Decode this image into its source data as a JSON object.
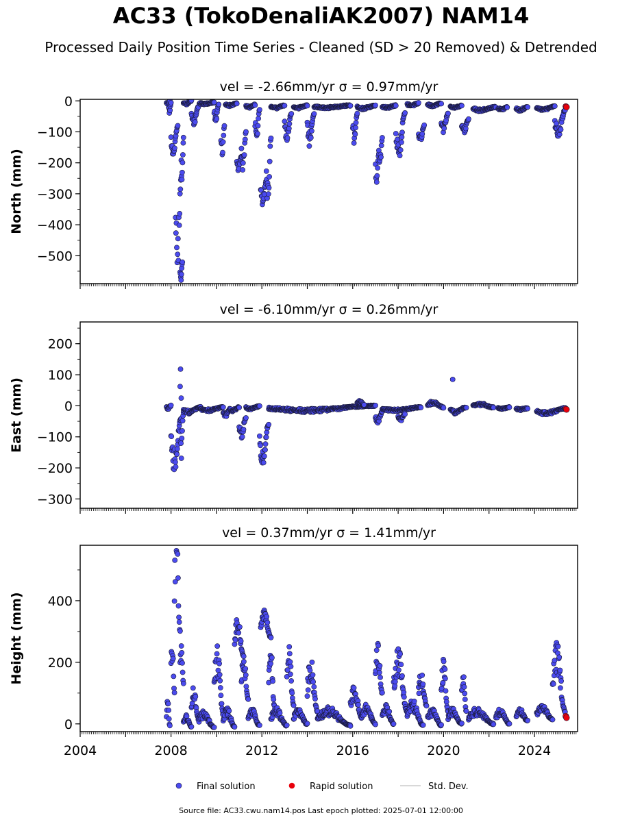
{
  "title": "AC33 (TokoDenaliAK2007) NAM14",
  "subtitle": "Processed Daily Position Time Series - Cleaned (SD > 20 Removed) & Detrended",
  "footer": "Source file: AC33.cwu.nam14.pos  Last epoch plotted: 2025-07-01 12:00:00",
  "colors": {
    "final": "#4b4bef",
    "final_edge": "#1a1a3a",
    "rapid": "#e8000b",
    "stddev": "#cccccc"
  },
  "chart_data": [
    {
      "type": "scatter",
      "title": "vel = -2.66mm/yr   σ = 0.97mm/yr",
      "ylabel": "North (mm)",
      "xlim": [
        2004.0,
        2025.9
      ],
      "ylim": [
        -590,
        5
      ],
      "yticks": [
        0,
        -100,
        -200,
        -300,
        -400,
        -500
      ],
      "ytick_labels": [
        "0",
        "−100",
        "−200",
        "−300",
        "−400",
        "−500"
      ],
      "series": [
        {
          "name": "Final solution",
          "segments": [
            [
              2007.8,
              2007.95,
              0,
              -10
            ],
            [
              2007.9,
              2008.0,
              -5,
              -35
            ],
            [
              2008.0,
              2008.3,
              -80,
              -160
            ],
            [
              2008.2,
              2008.45,
              -250,
              -500
            ],
            [
              2008.4,
              2008.5,
              -520,
              -585
            ],
            [
              2008.45,
              2008.55,
              -120,
              -250
            ],
            [
              2008.55,
              2008.9,
              0,
              -10
            ],
            [
              2008.9,
              2009.2,
              -20,
              -70
            ],
            [
              2009.25,
              2009.9,
              -5,
              -10
            ],
            [
              2009.9,
              2010.1,
              -10,
              -60
            ],
            [
              2010.2,
              2010.35,
              -80,
              -160
            ],
            [
              2010.4,
              2010.9,
              -8,
              -15
            ],
            [
              2010.9,
              2011.1,
              -180,
              -215
            ],
            [
              2011.1,
              2011.3,
              -100,
              -210
            ],
            [
              2011.3,
              2011.7,
              -12,
              -20
            ],
            [
              2011.7,
              2011.9,
              -30,
              -110
            ],
            [
              2011.95,
              2012.2,
              -260,
              -320
            ],
            [
              2012.2,
              2012.4,
              -120,
              -300
            ],
            [
              2012.4,
              2013.0,
              -15,
              -22
            ],
            [
              2013.0,
              2013.3,
              -40,
              -110
            ],
            [
              2013.4,
              2014.0,
              -15,
              -22
            ],
            [
              2014.0,
              2014.3,
              -40,
              -125
            ],
            [
              2014.3,
              2015.9,
              -15,
              -22
            ],
            [
              2016.0,
              2016.2,
              -40,
              -120
            ],
            [
              2016.2,
              2017.0,
              -15,
              -25
            ],
            [
              2017.0,
              2017.15,
              -170,
              -250
            ],
            [
              2017.15,
              2017.3,
              -120,
              -200
            ],
            [
              2017.3,
              2017.9,
              -15,
              -22
            ],
            [
              2017.9,
              2018.3,
              -40,
              -160
            ],
            [
              2018.4,
              2018.9,
              -8,
              -15
            ],
            [
              2018.9,
              2019.15,
              -80,
              -125
            ],
            [
              2019.3,
              2019.9,
              -8,
              -15
            ],
            [
              2019.9,
              2020.2,
              -40,
              -90
            ],
            [
              2020.3,
              2020.8,
              -15,
              -22
            ],
            [
              2020.8,
              2021.1,
              -60,
              -95
            ],
            [
              2021.3,
              2022.3,
              -20,
              -30
            ],
            [
              2022.4,
              2022.8,
              -20,
              -28
            ],
            [
              2023.2,
              2023.7,
              -20,
              -30
            ],
            [
              2024.1,
              2024.9,
              -18,
              -28
            ],
            [
              2024.9,
              2025.35,
              -30,
              -105
            ]
          ]
        },
        {
          "name": "Rapid solution",
          "x": [
            2025.38,
            2025.41
          ],
          "y": [
            -18,
            -20
          ]
        }
      ]
    },
    {
      "type": "scatter",
      "title": "vel = -6.10mm/yr   σ = 0.26mm/yr",
      "ylabel": "East (mm)",
      "xlim": [
        2004.0,
        2025.9
      ],
      "ylim": [
        -330,
        270
      ],
      "yticks": [
        200,
        100,
        0,
        -100,
        -200,
        -300
      ],
      "ytick_labels": [
        "200",
        "100",
        "0",
        "−100",
        "−200",
        "−300"
      ],
      "series": [
        {
          "name": "Final solution",
          "segments": [
            [
              2007.8,
              2008.0,
              0,
              -10
            ],
            [
              2008.0,
              2008.45,
              -40,
              -180
            ],
            [
              2008.4,
              2008.55,
              -20,
              -140
            ],
            [
              2008.55,
              2009.3,
              -5,
              -20
            ],
            [
              2009.3,
              2010.3,
              -5,
              -15
            ],
            [
              2010.3,
              2010.6,
              -10,
              -30
            ],
            [
              2010.6,
              2011.0,
              -5,
              -15
            ],
            [
              2011.0,
              2011.3,
              -40,
              -90
            ],
            [
              2011.3,
              2011.9,
              -2,
              -10
            ],
            [
              2011.9,
              2012.3,
              -60,
              -160
            ],
            [
              2012.3,
              2017.0,
              0,
              -15
            ],
            [
              2016.2,
              2016.5,
              5,
              15
            ],
            [
              2017.0,
              2017.3,
              -20,
              -50
            ],
            [
              2017.3,
              2019.0,
              -5,
              -15
            ],
            [
              2018.0,
              2018.3,
              -25,
              -45
            ],
            [
              2019.3,
              2020.0,
              -5,
              10
            ],
            [
              2020.3,
              2021.0,
              -5,
              -20
            ],
            [
              2021.3,
              2022.2,
              -5,
              5
            ],
            [
              2022.4,
              2022.9,
              -5,
              -10
            ],
            [
              2023.2,
              2023.7,
              -8,
              -12
            ],
            [
              2024.1,
              2025.35,
              -8,
              -25
            ]
          ],
          "extra": [
            [
              2008.42,
              118
            ],
            [
              2008.4,
              62
            ],
            [
              2008.45,
              25
            ],
            [
              2020.4,
              85
            ]
          ]
        },
        {
          "name": "Rapid solution",
          "x": [
            2025.38,
            2025.41
          ],
          "y": [
            -10,
            -12
          ]
        }
      ]
    },
    {
      "type": "scatter",
      "title": "vel = 0.37mm/yr   σ = 1.41mm/yr",
      "ylabel": "Height (mm)",
      "xlabel_ticks": [
        "2004",
        "2008",
        "2012",
        "2016",
        "2020",
        "2024"
      ],
      "xticks": [
        2004,
        2008,
        2012,
        2016,
        2020,
        2024
      ],
      "xlim": [
        2004.0,
        2025.9
      ],
      "ylim": [
        -25,
        580
      ],
      "yticks": [
        400,
        200,
        0
      ],
      "ytick_labels": [
        "400",
        "200",
        "0"
      ],
      "series": [
        {
          "name": "Final solution",
          "segments": [
            [
              2007.8,
              2007.95,
              -5,
              60
            ],
            [
              2008.0,
              2008.15,
              100,
              250
            ],
            [
              2008.15,
              2008.4,
              300,
              580
            ],
            [
              2008.4,
              2008.55,
              130,
              240
            ],
            [
              2008.55,
              2008.9,
              -10,
              20
            ],
            [
              2008.9,
              2009.2,
              20,
              100
            ],
            [
              2009.2,
              2009.9,
              -10,
              30
            ],
            [
              2009.9,
              2010.3,
              30,
              210
            ],
            [
              2010.3,
              2010.8,
              -10,
              40
            ],
            [
              2010.8,
              2011.2,
              220,
              320
            ],
            [
              2011.1,
              2011.4,
              80,
              200
            ],
            [
              2011.4,
              2011.9,
              -5,
              40
            ],
            [
              2011.95,
              2012.4,
              280,
              360
            ],
            [
              2012.3,
              2012.55,
              60,
              230
            ],
            [
              2012.4,
              2013.1,
              -5,
              40
            ],
            [
              2013.1,
              2013.4,
              60,
              210
            ],
            [
              2013.4,
              2014.0,
              0,
              40
            ],
            [
              2014.0,
              2014.45,
              40,
              180
            ],
            [
              2014.45,
              2015.9,
              -5,
              40
            ],
            [
              2015.9,
              2016.4,
              20,
              100
            ],
            [
              2016.4,
              2017.0,
              0,
              50
            ],
            [
              2017.0,
              2017.3,
              100,
              230
            ],
            [
              2017.3,
              2017.8,
              0,
              50
            ],
            [
              2017.8,
              2018.4,
              40,
              210
            ],
            [
              2018.4,
              2019.1,
              -5,
              60
            ],
            [
              2018.9,
              2019.25,
              60,
              150
            ],
            [
              2019.3,
              2019.9,
              -5,
              40
            ],
            [
              2019.9,
              2020.2,
              40,
              175
            ],
            [
              2020.2,
              2020.8,
              0,
              40
            ],
            [
              2020.8,
              2021.0,
              40,
              150
            ],
            [
              2021.1,
              2022.2,
              0,
              40
            ],
            [
              2022.3,
              2022.9,
              0,
              40
            ],
            [
              2023.2,
              2023.7,
              10,
              40
            ],
            [
              2024.1,
              2024.8,
              15,
              50
            ],
            [
              2024.8,
              2025.35,
              40,
              215
            ]
          ]
        },
        {
          "name": "Rapid solution",
          "x": [
            2025.38,
            2025.41
          ],
          "y": [
            25,
            20
          ]
        }
      ]
    }
  ],
  "legend": {
    "placement": "bottom-center",
    "items": [
      "Final solution",
      "Rapid solution",
      "Std. Dev."
    ]
  }
}
